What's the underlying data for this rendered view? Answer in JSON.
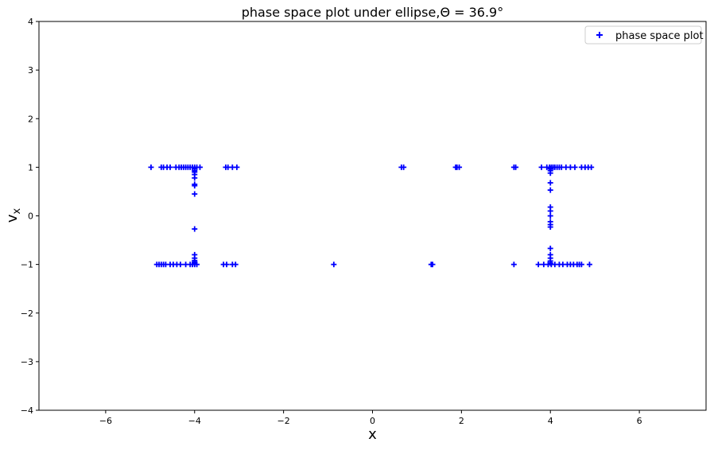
{
  "chart_data": {
    "type": "scatter",
    "title": "phase space plot under ellipse,Θ = 36.9°",
    "xlabel": "x",
    "ylabel": "v",
    "ylabel_subscript": "x",
    "xlim": [
      -7.5,
      7.5
    ],
    "ylim": [
      -4,
      4
    ],
    "xticks": [
      -6,
      -4,
      -2,
      0,
      2,
      4,
      6
    ],
    "xtick_labels": [
      "−6",
      "−4",
      "−2",
      "0",
      "2",
      "4",
      "6"
    ],
    "yticks": [
      -4,
      -3,
      -2,
      -1,
      0,
      1,
      2,
      3,
      4
    ],
    "ytick_labels": [
      "−4",
      "−3",
      "−2",
      "−1",
      "0",
      "1",
      "2",
      "3",
      "4"
    ],
    "grid": false,
    "legend_position": "top-right",
    "marker": "+",
    "series": [
      {
        "name": "phase space plot",
        "color": "#0000ff",
        "points": [
          [
            -4.98,
            1
          ],
          [
            -4.75,
            1
          ],
          [
            -4.7,
            1
          ],
          [
            -4.62,
            1
          ],
          [
            -4.55,
            1
          ],
          [
            -4.42,
            1
          ],
          [
            -4.35,
            1
          ],
          [
            -4.3,
            1
          ],
          [
            -4.25,
            1
          ],
          [
            -4.2,
            1
          ],
          [
            -4.15,
            1
          ],
          [
            -4.1,
            1
          ],
          [
            -4.05,
            1
          ],
          [
            -4.0,
            1
          ],
          [
            -3.95,
            1
          ],
          [
            -3.88,
            1
          ],
          [
            -3.3,
            1
          ],
          [
            -3.25,
            1
          ],
          [
            -3.15,
            1
          ],
          [
            -3.05,
            1
          ],
          [
            -4.0,
            0.97
          ],
          [
            -4.0,
            0.93
          ],
          [
            -4.0,
            0.9
          ],
          [
            -4.0,
            0.85
          ],
          [
            -4.0,
            0.78
          ],
          [
            -4.0,
            0.65
          ],
          [
            -4.0,
            0.62
          ],
          [
            -4.0,
            0.45
          ],
          [
            -4.0,
            -0.27
          ],
          [
            -4.0,
            -0.8
          ],
          [
            -4.0,
            -0.87
          ],
          [
            -4.0,
            -0.92
          ],
          [
            -4.0,
            -0.95
          ],
          [
            -4.0,
            -0.98
          ],
          [
            -4.85,
            -1
          ],
          [
            -4.8,
            -1
          ],
          [
            -4.75,
            -1
          ],
          [
            -4.7,
            -1
          ],
          [
            -4.65,
            -1
          ],
          [
            -4.55,
            -1
          ],
          [
            -4.48,
            -1
          ],
          [
            -4.4,
            -1
          ],
          [
            -4.32,
            -1
          ],
          [
            -4.2,
            -1
          ],
          [
            -4.1,
            -1
          ],
          [
            -4.05,
            -1
          ],
          [
            -4.0,
            -1
          ],
          [
            -3.95,
            -1
          ],
          [
            -3.35,
            -1
          ],
          [
            -3.28,
            -1
          ],
          [
            -3.15,
            -1
          ],
          [
            -3.08,
            -1
          ],
          [
            0.65,
            1
          ],
          [
            0.7,
            1
          ],
          [
            1.87,
            1
          ],
          [
            1.9,
            1
          ],
          [
            1.95,
            1
          ],
          [
            3.18,
            1
          ],
          [
            3.22,
            1
          ],
          [
            -0.87,
            -1
          ],
          [
            1.32,
            -1
          ],
          [
            1.35,
            -1
          ],
          [
            3.18,
            -1
          ],
          [
            3.8,
            1
          ],
          [
            3.92,
            1
          ],
          [
            3.98,
            1
          ],
          [
            4.02,
            1
          ],
          [
            4.06,
            1
          ],
          [
            4.1,
            1
          ],
          [
            4.15,
            1
          ],
          [
            4.2,
            1
          ],
          [
            4.25,
            1
          ],
          [
            4.35,
            1
          ],
          [
            4.45,
            1
          ],
          [
            4.55,
            1
          ],
          [
            4.7,
            1
          ],
          [
            4.78,
            1
          ],
          [
            4.85,
            1
          ],
          [
            4.92,
            1
          ],
          [
            4.0,
            0.97
          ],
          [
            4.0,
            0.93
          ],
          [
            4.0,
            0.88
          ],
          [
            4.0,
            0.68
          ],
          [
            4.0,
            0.53
          ],
          [
            4.0,
            0.18
          ],
          [
            4.0,
            0.1
          ],
          [
            4.0,
            0.0
          ],
          [
            4.0,
            -0.12
          ],
          [
            4.0,
            -0.18
          ],
          [
            4.0,
            -0.23
          ],
          [
            4.0,
            -0.67
          ],
          [
            4.0,
            -0.8
          ],
          [
            4.0,
            -0.87
          ],
          [
            4.0,
            -0.93
          ],
          [
            4.0,
            -0.97
          ],
          [
            3.73,
            -1
          ],
          [
            3.85,
            -1
          ],
          [
            3.95,
            -1
          ],
          [
            4.02,
            -1
          ],
          [
            4.1,
            -1
          ],
          [
            4.2,
            -1
          ],
          [
            4.28,
            -1
          ],
          [
            4.38,
            -1
          ],
          [
            4.45,
            -1
          ],
          [
            4.52,
            -1
          ],
          [
            4.6,
            -1
          ],
          [
            4.65,
            -1
          ],
          [
            4.7,
            -1
          ],
          [
            4.88,
            -1
          ]
        ]
      }
    ]
  }
}
